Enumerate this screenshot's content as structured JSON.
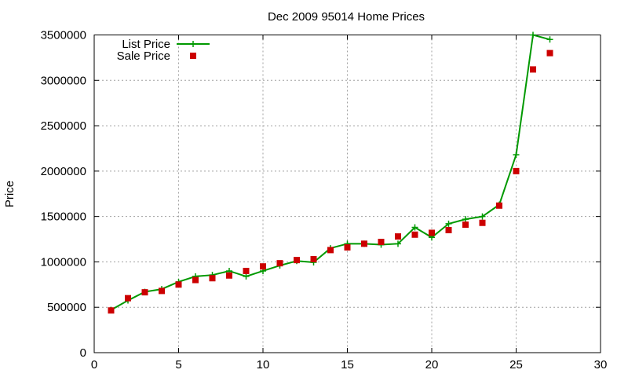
{
  "chart_data": {
    "type": "line",
    "title": "Dec 2009 95014 Home Prices",
    "xlabel": "",
    "ylabel": "Price",
    "xlim": [
      0,
      30
    ],
    "ylim": [
      0,
      3500000
    ],
    "x_ticks": [
      0,
      5,
      10,
      15,
      20,
      25,
      30
    ],
    "y_ticks": [
      0,
      500000,
      1000000,
      1500000,
      2000000,
      2500000,
      3000000,
      3500000
    ],
    "grid": true,
    "legend_position": "top-left",
    "x": [
      1,
      2,
      3,
      4,
      5,
      6,
      7,
      8,
      9,
      10,
      11,
      12,
      13,
      14,
      15,
      16,
      17,
      18,
      19,
      20,
      21,
      22,
      23,
      24,
      25,
      26,
      27
    ],
    "series": [
      {
        "name": "List Price",
        "style": "line-with-plus-markers",
        "color": "#009900",
        "values": [
          470000,
          575000,
          670000,
          700000,
          780000,
          840000,
          855000,
          900000,
          840000,
          900000,
          960000,
          1010000,
          995000,
          1150000,
          1200000,
          1200000,
          1190000,
          1200000,
          1380000,
          1270000,
          1420000,
          1470000,
          1500000,
          1630000,
          2180000,
          3500000,
          3450000
        ]
      },
      {
        "name": "Sale Price",
        "style": "square-markers",
        "color": "#cc0000",
        "values": [
          465000,
          600000,
          665000,
          680000,
          750000,
          800000,
          820000,
          850000,
          900000,
          950000,
          985000,
          1020000,
          1030000,
          1130000,
          1160000,
          1200000,
          1220000,
          1280000,
          1300000,
          1320000,
          1350000,
          1410000,
          1430000,
          1620000,
          2000000,
          3120000,
          3300000
        ]
      }
    ]
  }
}
